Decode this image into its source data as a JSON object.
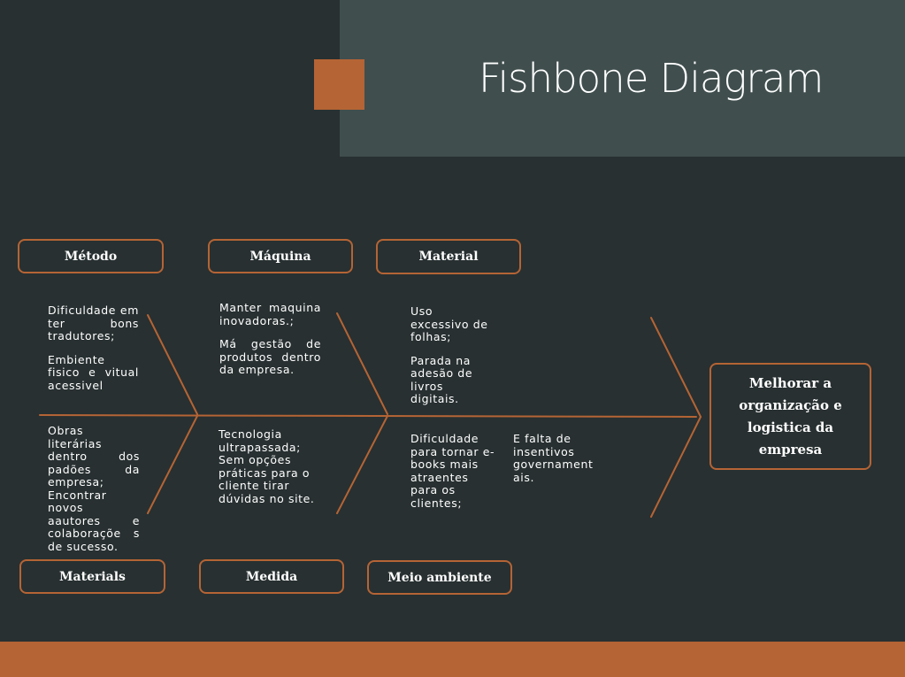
{
  "title": "Fishbone Diagram",
  "head": "Melhorar a organização e logistica da empresa",
  "categories_top": [
    "Método",
    "Máquina",
    "Material"
  ],
  "categories_bottom": [
    "Materials",
    "Medida",
    "Meio ambiente"
  ],
  "causes": {
    "metodo": [
      "Dificuldade em ter bons tradutores;",
      "Embiente fisico e vitual acessivel"
    ],
    "maquina": [
      "Manter maquina inovadoras.;",
      "Má gestão de produtos dentro da empresa."
    ],
    "material": [
      "Uso excessivo de folhas;",
      "Parada na adesão de livros digitais."
    ],
    "materials": [
      "Obras literárias dentro dos padões da empresa; Encontrar novos aautores e colaboraçõe s de sucesso."
    ],
    "medida": [
      "Tecnologia ultrapassada; Sem opções práticas para o cliente tirar dúvidas no site."
    ],
    "meio_ambiente": [
      "Dificuldade para tornar e-books mais atraentes para os clientes;",
      "E falta de insentivos governament ais."
    ]
  },
  "colors": {
    "background": "#283031",
    "title_panel": "#404e4e",
    "accent": "#b56435"
  }
}
